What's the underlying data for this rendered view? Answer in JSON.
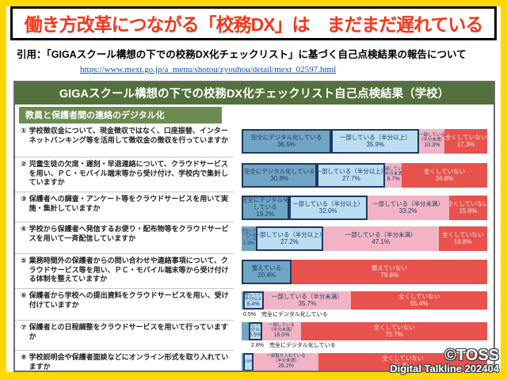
{
  "slide": {
    "title": "働き方改革につながる「校務DX」は　まだまだ遅れている",
    "citation": "引用：「GIGAスクール構想の下での校務DX化チェックリスト」に基づく自己点検結果の報告について",
    "url": "https://www.mext.go.jp/a_menu/shotou/zyouhou/detail/mext_02597.html",
    "accent_yellow": "#FFD800",
    "title_red": "#F5371A"
  },
  "panel": {
    "header": "GIGAスクール構想の下での校務DX化チェックリスト自己点検結果（学校）",
    "section_header": "教員と保護者間の連絡のデジタル化"
  },
  "watermark": {
    "line1": "©TOSS",
    "line2": "Digital Talkline 202404"
  },
  "questions": [
    {
      "number": "①",
      "text": "学校徴収金について、現金徴収ではなく、口座振替、インターネットバンキング等を活用して徴収金の徴収を行っていますか"
    },
    {
      "number": "②",
      "text": "児童生徒の欠席・遅刻・早退連絡について、クラウドサービスを用い、ＰＣ・モバイル端末等から受け付け、学校内で集計していますか"
    },
    {
      "number": "③",
      "text": "保護者への調査・アンケート等をクラウドサービスを用いて実施・集計していますか"
    },
    {
      "number": "④",
      "text": "学校から保護者へ発信するお便り・配布物等をクラウドサービスを用いて一斉配信していますか"
    },
    {
      "number": "⑤",
      "text": "業務時間外の保護者からの問い合わせや連絡事項について、クラウドサービス等を用い、ＰＣ・モバイル端末等から受け付ける体制を整えていますか"
    },
    {
      "number": "⑥",
      "text": "保護者から学校への提出資料をクラウドサービスを用い、受け付けていますか"
    },
    {
      "number": "⑦",
      "text": "保護者との日程調整をクラウドサービスを用いて行っていますか"
    },
    {
      "number": "⑧",
      "text": "学校説明会や保護者面談などにオンライン形式を取り入れていますか"
    }
  ],
  "chart_data": {
    "type": "bar",
    "orientation": "horizontal-stacked",
    "unit": "%",
    "xlim": [
      0,
      100
    ],
    "legend_position": "labels-inside-bars",
    "colors": {
      "full": "#70A6C4",
      "partial_more": "#BBDEF1",
      "partial_less": "#F2B4C4",
      "none": "#E8524D",
      "highlight_border": "#1F3864"
    },
    "rows": [
      {
        "question_ref": 1,
        "segments": [
          {
            "label": "完全にデジタル化している",
            "value": 36.5,
            "color": "full",
            "bordered": true,
            "display_lines": [
              "完全にデジタル化している"
            ]
          },
          {
            "label": "一部している（半分以上）",
            "value": 35.9,
            "color": "pm",
            "bordered": true,
            "display_lines": [
              "一部している（半分以上）"
            ]
          },
          {
            "label": "一部している（半分未満）",
            "value": 10.3,
            "color": "pl",
            "size": "tiny",
            "display_lines": [
              "一部している",
              "（半分未満）"
            ]
          },
          {
            "label": "全くしていない",
            "value": 17.3,
            "color": "none",
            "display_lines": [
              "全くしていない"
            ]
          }
        ]
      },
      {
        "question_ref": 2,
        "segments": [
          {
            "label": "完全にデジタル化している",
            "value": 30.8,
            "color": "full",
            "bordered": true,
            "display_lines": [
              "完全にデジタル化している"
            ]
          },
          {
            "label": "一部している（半分以上）",
            "value": 27.7,
            "color": "pm",
            "bordered": true,
            "display_lines": [
              "一部している（半分以上）"
            ]
          },
          {
            "label": "一部している（半分未満）",
            "value": 6.7,
            "color": "pl",
            "size": "tiny",
            "display_lines": [
              "一部している",
              "（半分未満）"
            ]
          },
          {
            "label": "全くしていない",
            "value": 34.8,
            "color": "none",
            "display_lines": [
              "全くしていない"
            ]
          }
        ]
      },
      {
        "question_ref": 3,
        "segments": [
          {
            "label": "完全にデジタル化している",
            "value": 19.2,
            "color": "full",
            "bordered": true,
            "display_lines": [
              "完全にデジタル化",
              "している"
            ]
          },
          {
            "label": "一部している（半分以上）",
            "value": 32.0,
            "color": "pm",
            "bordered": true,
            "display_lines": [
              "一部している（半分以上）"
            ]
          },
          {
            "label": "一部している（半分未満）",
            "value": 33.2,
            "color": "pl",
            "display_lines": [
              "一部している（半分未満）"
            ]
          },
          {
            "label": "全くしていない",
            "value": 15.6,
            "color": "none",
            "display_lines": [
              "全くしていない"
            ]
          }
        ]
      },
      {
        "question_ref": 4,
        "segments": [
          {
            "label": "完全にデジタル化している",
            "value": 5.9,
            "color": "full",
            "size": "micro",
            "display_lines": [
              "完全にデ",
              "ジタル化",
              "している"
            ]
          },
          {
            "label": "一部している（半分以上）",
            "value": 27.2,
            "color": "pm",
            "bordered": true,
            "display_lines": [
              "一部している（半分以上）"
            ]
          },
          {
            "label": "一部している（半分未満）",
            "value": 47.1,
            "color": "pl",
            "display_lines": [
              "一部している（半分未満）"
            ]
          },
          {
            "label": "全くしていない",
            "value": 19.8,
            "color": "none",
            "display_lines": [
              "全くしていない"
            ]
          }
        ]
      },
      {
        "question_ref": 5,
        "segments": [
          {
            "label": "整えている",
            "value": 20.4,
            "color": "full",
            "bordered": true,
            "display_lines": [
              "整えている"
            ]
          },
          {
            "label": "整えていない",
            "value": 79.6,
            "color": "none",
            "display_lines": [
              "整えていない"
            ]
          }
        ]
      },
      {
        "question_ref": 6,
        "annotation": "0.5%　完全にデジタル化している",
        "segments": [
          {
            "label": "完全にデジタル化している",
            "value": 0.5,
            "color": "full",
            "show_value": false,
            "display_lines": []
          },
          {
            "label": "一部している（半分以上）",
            "value": 8.4,
            "color": "pm",
            "bordered": true,
            "size": "tiny",
            "display_lines": [
              "一部している",
              "（半分以上）"
            ]
          },
          {
            "label": "一部している（半分未満）",
            "value": 35.7,
            "color": "pl",
            "display_lines": [
              "一部している（半分未満）"
            ]
          },
          {
            "label": "全くしていない",
            "value": 55.4,
            "color": "none",
            "display_lines": [
              "全くしていない"
            ]
          }
        ]
      },
      {
        "question_ref": 7,
        "annotation": "2.8%　完全にデジタル化している",
        "segments": [
          {
            "label": "完全にデジタル化している",
            "value": 2.8,
            "color": "full",
            "show_value": false,
            "display_lines": []
          },
          {
            "label": "一部している（半分以上）",
            "value": 5.5,
            "color": "pm",
            "bordered": true,
            "size": "tiny",
            "display_lines": [
              "一部している",
              "（半分以上）"
            ]
          },
          {
            "label": "一部している（半分未満）",
            "value": 16.0,
            "color": "pl",
            "size": "tiny",
            "display_lines": [
              "一部している",
              "（半分未満）"
            ]
          },
          {
            "label": "全くしていない",
            "value": 75.7,
            "color": "none",
            "display_lines": [
              "全くしていない"
            ]
          }
        ]
      },
      {
        "question_ref": 8,
        "annotation": "完全にオンライン化している 4.5%　一部取り入れている（半分以上）",
        "segments": [
          {
            "label": "完全にオンライン化している",
            "value": 0.5,
            "color": "full",
            "show_value": false,
            "display_lines": []
          },
          {
            "label": "一部取り入れている（半分以上）",
            "value": 4.5,
            "color": "pm",
            "bordered": true,
            "size": "tiny",
            "show_value": false,
            "display_lines": [
              "0.5%"
            ]
          },
          {
            "label": "一部取り入れている（半分未満）",
            "value": 26.2,
            "color": "pl",
            "size": "tiny",
            "display_lines": [
              "一部取り入れている",
              "（半分未満）"
            ]
          },
          {
            "label": "全くしていない",
            "value": 68.8,
            "color": "none",
            "display_lines": [
              "全くしていない"
            ]
          }
        ]
      }
    ]
  }
}
